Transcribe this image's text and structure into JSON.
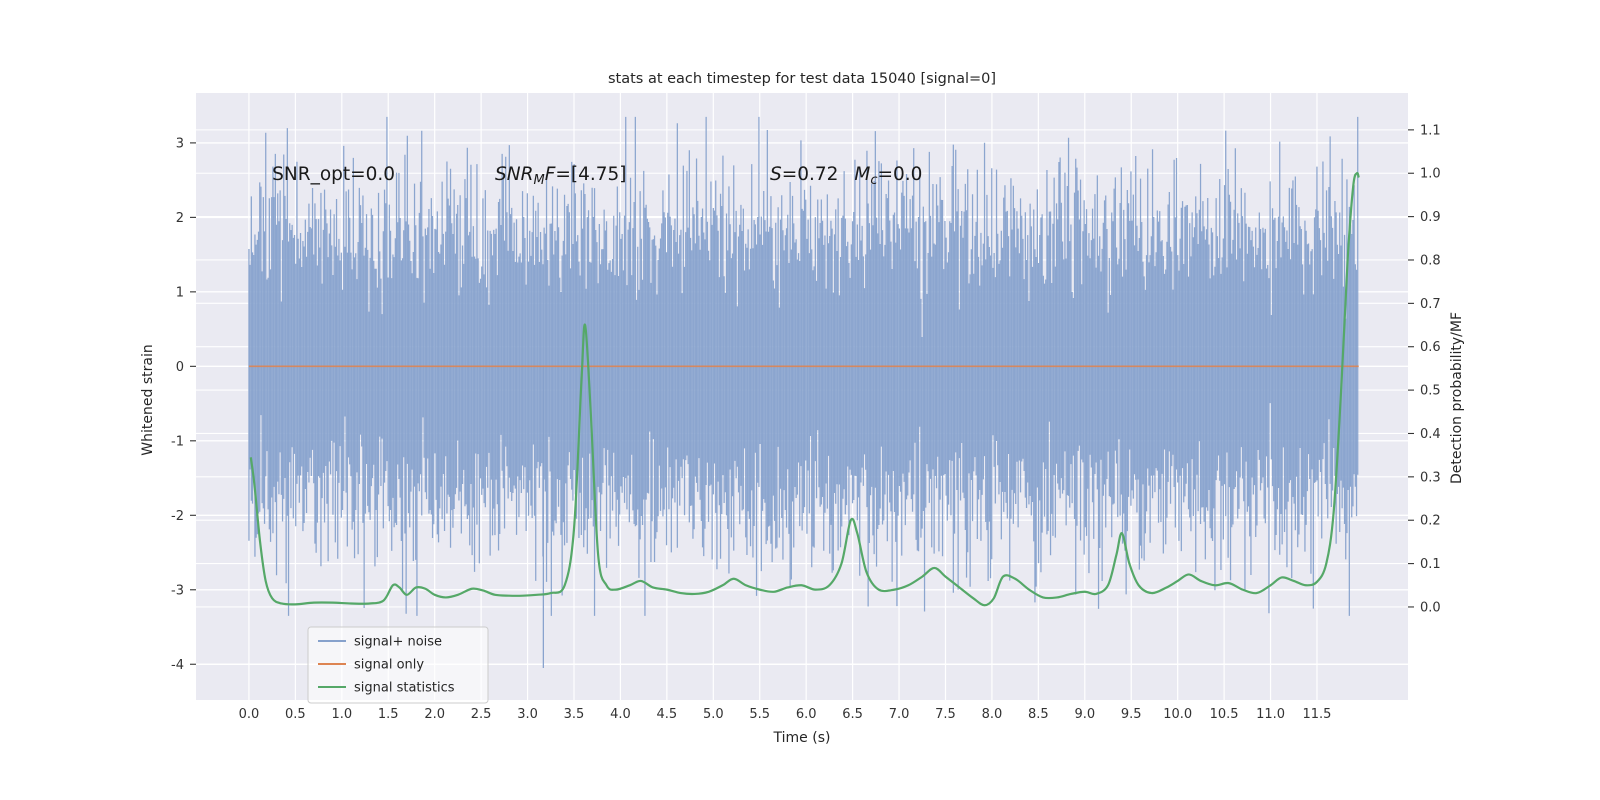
{
  "chart_data": {
    "type": "line",
    "title": "stats at each timestep for test data 15040 [signal=0]",
    "xlabel": "Time (s)",
    "ylabel_left": "Whitened strain",
    "ylabel_right": "Detection probability/MF",
    "xlim": [
      -0.57,
      12.48
    ],
    "ylim_left": [
      -4.48,
      3.67
    ],
    "ylim_right": [
      -0.2145,
      1.185
    ],
    "grid": true,
    "x_ticks": [
      0.0,
      0.5,
      1.0,
      1.5,
      2.0,
      2.5,
      3.0,
      3.5,
      4.0,
      4.5,
      5.0,
      5.5,
      6.0,
      6.5,
      7.0,
      7.5,
      8.0,
      8.5,
      9.0,
      9.5,
      10.0,
      10.5,
      11.0,
      11.5
    ],
    "y_ticks_left": [
      -4,
      -3,
      -2,
      -1,
      0,
      1,
      2,
      3
    ],
    "y_ticks_right": [
      0.0,
      0.1,
      0.2,
      0.3,
      0.4,
      0.5,
      0.6,
      0.7,
      0.8,
      0.9,
      1.0,
      1.1
    ],
    "style": {
      "figure_bg": "#ffffff",
      "axes_bg": "#eaeaf2",
      "grid_color": "#ffffff",
      "text_color": "#262626",
      "tick_color": "#333333",
      "noise_color": "#86a1cc",
      "signal_color": "#dd8452",
      "stats_color": "#55a868",
      "legend_bg": "rgba(255,255,255,0.55)",
      "legend_border": "#cccccc"
    },
    "legend": {
      "position": "lower left",
      "entries": [
        {
          "label": "signal+ noise",
          "color": "#86a1cc"
        },
        {
          "label": "signal only",
          "color": "#dd8452"
        },
        {
          "label": "signal statistics",
          "color": "#55a868"
        }
      ]
    },
    "annotations": [
      {
        "x": 0.25,
        "y": 2.5,
        "runs": [
          {
            "t": "SNR_opt=0.0"
          }
        ]
      },
      {
        "x": 2.65,
        "y": 2.5,
        "runs": [
          {
            "t": "SNR",
            "i": true
          },
          {
            "t": "M",
            "i": true,
            "sub": true
          },
          {
            "t": "F",
            "i": true
          },
          {
            "t": "=[4.75]"
          }
        ]
      },
      {
        "x": 5.61,
        "y": 2.5,
        "runs": [
          {
            "t": "S",
            "i": true
          },
          {
            "t": "=0.72"
          },
          {
            "t": "M",
            "i": true,
            "dx": 16
          },
          {
            "t": "c",
            "i": true,
            "sub": true
          },
          {
            "t": "=0.0"
          }
        ]
      }
    ],
    "series": {
      "signal_plus_noise": {
        "label": "signal+ noise",
        "axis": "left",
        "color": "#86a1cc",
        "type": "gaussian_noise_envelope",
        "x_range": [
          0.0,
          11.95
        ],
        "mean": 0.0,
        "std": 0.98,
        "typical_envelope": 1.9,
        "max_spike": 3.3,
        "outlier": {
          "x": 3.17,
          "y": -4.05
        }
      },
      "signal_only": {
        "label": "signal only",
        "axis": "left",
        "color": "#dd8452",
        "type": "constant",
        "value": 0.0,
        "x_range": [
          0.0,
          11.95
        ]
      },
      "signal_statistics": {
        "label": "signal statistics",
        "axis": "right",
        "color": "#55a868",
        "type": "curve",
        "points": [
          [
            0.02,
            0.345
          ],
          [
            0.06,
            0.28
          ],
          [
            0.12,
            0.15
          ],
          [
            0.18,
            0.06
          ],
          [
            0.25,
            0.02
          ],
          [
            0.35,
            0.008
          ],
          [
            0.5,
            0.006
          ],
          [
            0.7,
            0.01
          ],
          [
            0.9,
            0.01
          ],
          [
            1.1,
            0.008
          ],
          [
            1.3,
            0.008
          ],
          [
            1.45,
            0.015
          ],
          [
            1.55,
            0.05
          ],
          [
            1.62,
            0.045
          ],
          [
            1.7,
            0.028
          ],
          [
            1.8,
            0.045
          ],
          [
            1.9,
            0.042
          ],
          [
            2.0,
            0.028
          ],
          [
            2.12,
            0.022
          ],
          [
            2.25,
            0.028
          ],
          [
            2.4,
            0.042
          ],
          [
            2.52,
            0.038
          ],
          [
            2.65,
            0.028
          ],
          [
            2.8,
            0.026
          ],
          [
            2.95,
            0.026
          ],
          [
            3.1,
            0.028
          ],
          [
            3.25,
            0.032
          ],
          [
            3.4,
            0.05
          ],
          [
            3.5,
            0.18
          ],
          [
            3.58,
            0.52
          ],
          [
            3.62,
            0.65
          ],
          [
            3.68,
            0.45
          ],
          [
            3.76,
            0.12
          ],
          [
            3.85,
            0.05
          ],
          [
            3.95,
            0.04
          ],
          [
            4.1,
            0.05
          ],
          [
            4.22,
            0.06
          ],
          [
            4.35,
            0.045
          ],
          [
            4.5,
            0.04
          ],
          [
            4.65,
            0.032
          ],
          [
            4.8,
            0.03
          ],
          [
            4.95,
            0.035
          ],
          [
            5.1,
            0.05
          ],
          [
            5.22,
            0.065
          ],
          [
            5.35,
            0.05
          ],
          [
            5.5,
            0.04
          ],
          [
            5.65,
            0.035
          ],
          [
            5.8,
            0.045
          ],
          [
            5.95,
            0.05
          ],
          [
            6.1,
            0.04
          ],
          [
            6.25,
            0.05
          ],
          [
            6.38,
            0.1
          ],
          [
            6.48,
            0.2
          ],
          [
            6.55,
            0.17
          ],
          [
            6.65,
            0.08
          ],
          [
            6.78,
            0.04
          ],
          [
            6.95,
            0.04
          ],
          [
            7.1,
            0.05
          ],
          [
            7.25,
            0.07
          ],
          [
            7.38,
            0.09
          ],
          [
            7.5,
            0.07
          ],
          [
            7.65,
            0.045
          ],
          [
            7.8,
            0.02
          ],
          [
            7.92,
            0.004
          ],
          [
            8.02,
            0.02
          ],
          [
            8.12,
            0.07
          ],
          [
            8.25,
            0.065
          ],
          [
            8.4,
            0.04
          ],
          [
            8.55,
            0.022
          ],
          [
            8.7,
            0.022
          ],
          [
            8.85,
            0.03
          ],
          [
            9.0,
            0.035
          ],
          [
            9.12,
            0.03
          ],
          [
            9.25,
            0.05
          ],
          [
            9.34,
            0.12
          ],
          [
            9.4,
            0.17
          ],
          [
            9.48,
            0.1
          ],
          [
            9.58,
            0.05
          ],
          [
            9.72,
            0.032
          ],
          [
            9.88,
            0.045
          ],
          [
            10.0,
            0.06
          ],
          [
            10.12,
            0.075
          ],
          [
            10.25,
            0.06
          ],
          [
            10.4,
            0.05
          ],
          [
            10.55,
            0.055
          ],
          [
            10.7,
            0.04
          ],
          [
            10.85,
            0.032
          ],
          [
            11.0,
            0.05
          ],
          [
            11.12,
            0.068
          ],
          [
            11.25,
            0.06
          ],
          [
            11.38,
            0.05
          ],
          [
            11.5,
            0.058
          ],
          [
            11.6,
            0.1
          ],
          [
            11.68,
            0.22
          ],
          [
            11.76,
            0.5
          ],
          [
            11.83,
            0.8
          ],
          [
            11.89,
            0.97
          ],
          [
            11.93,
            1.0
          ],
          [
            11.95,
            0.99
          ]
        ]
      }
    }
  }
}
